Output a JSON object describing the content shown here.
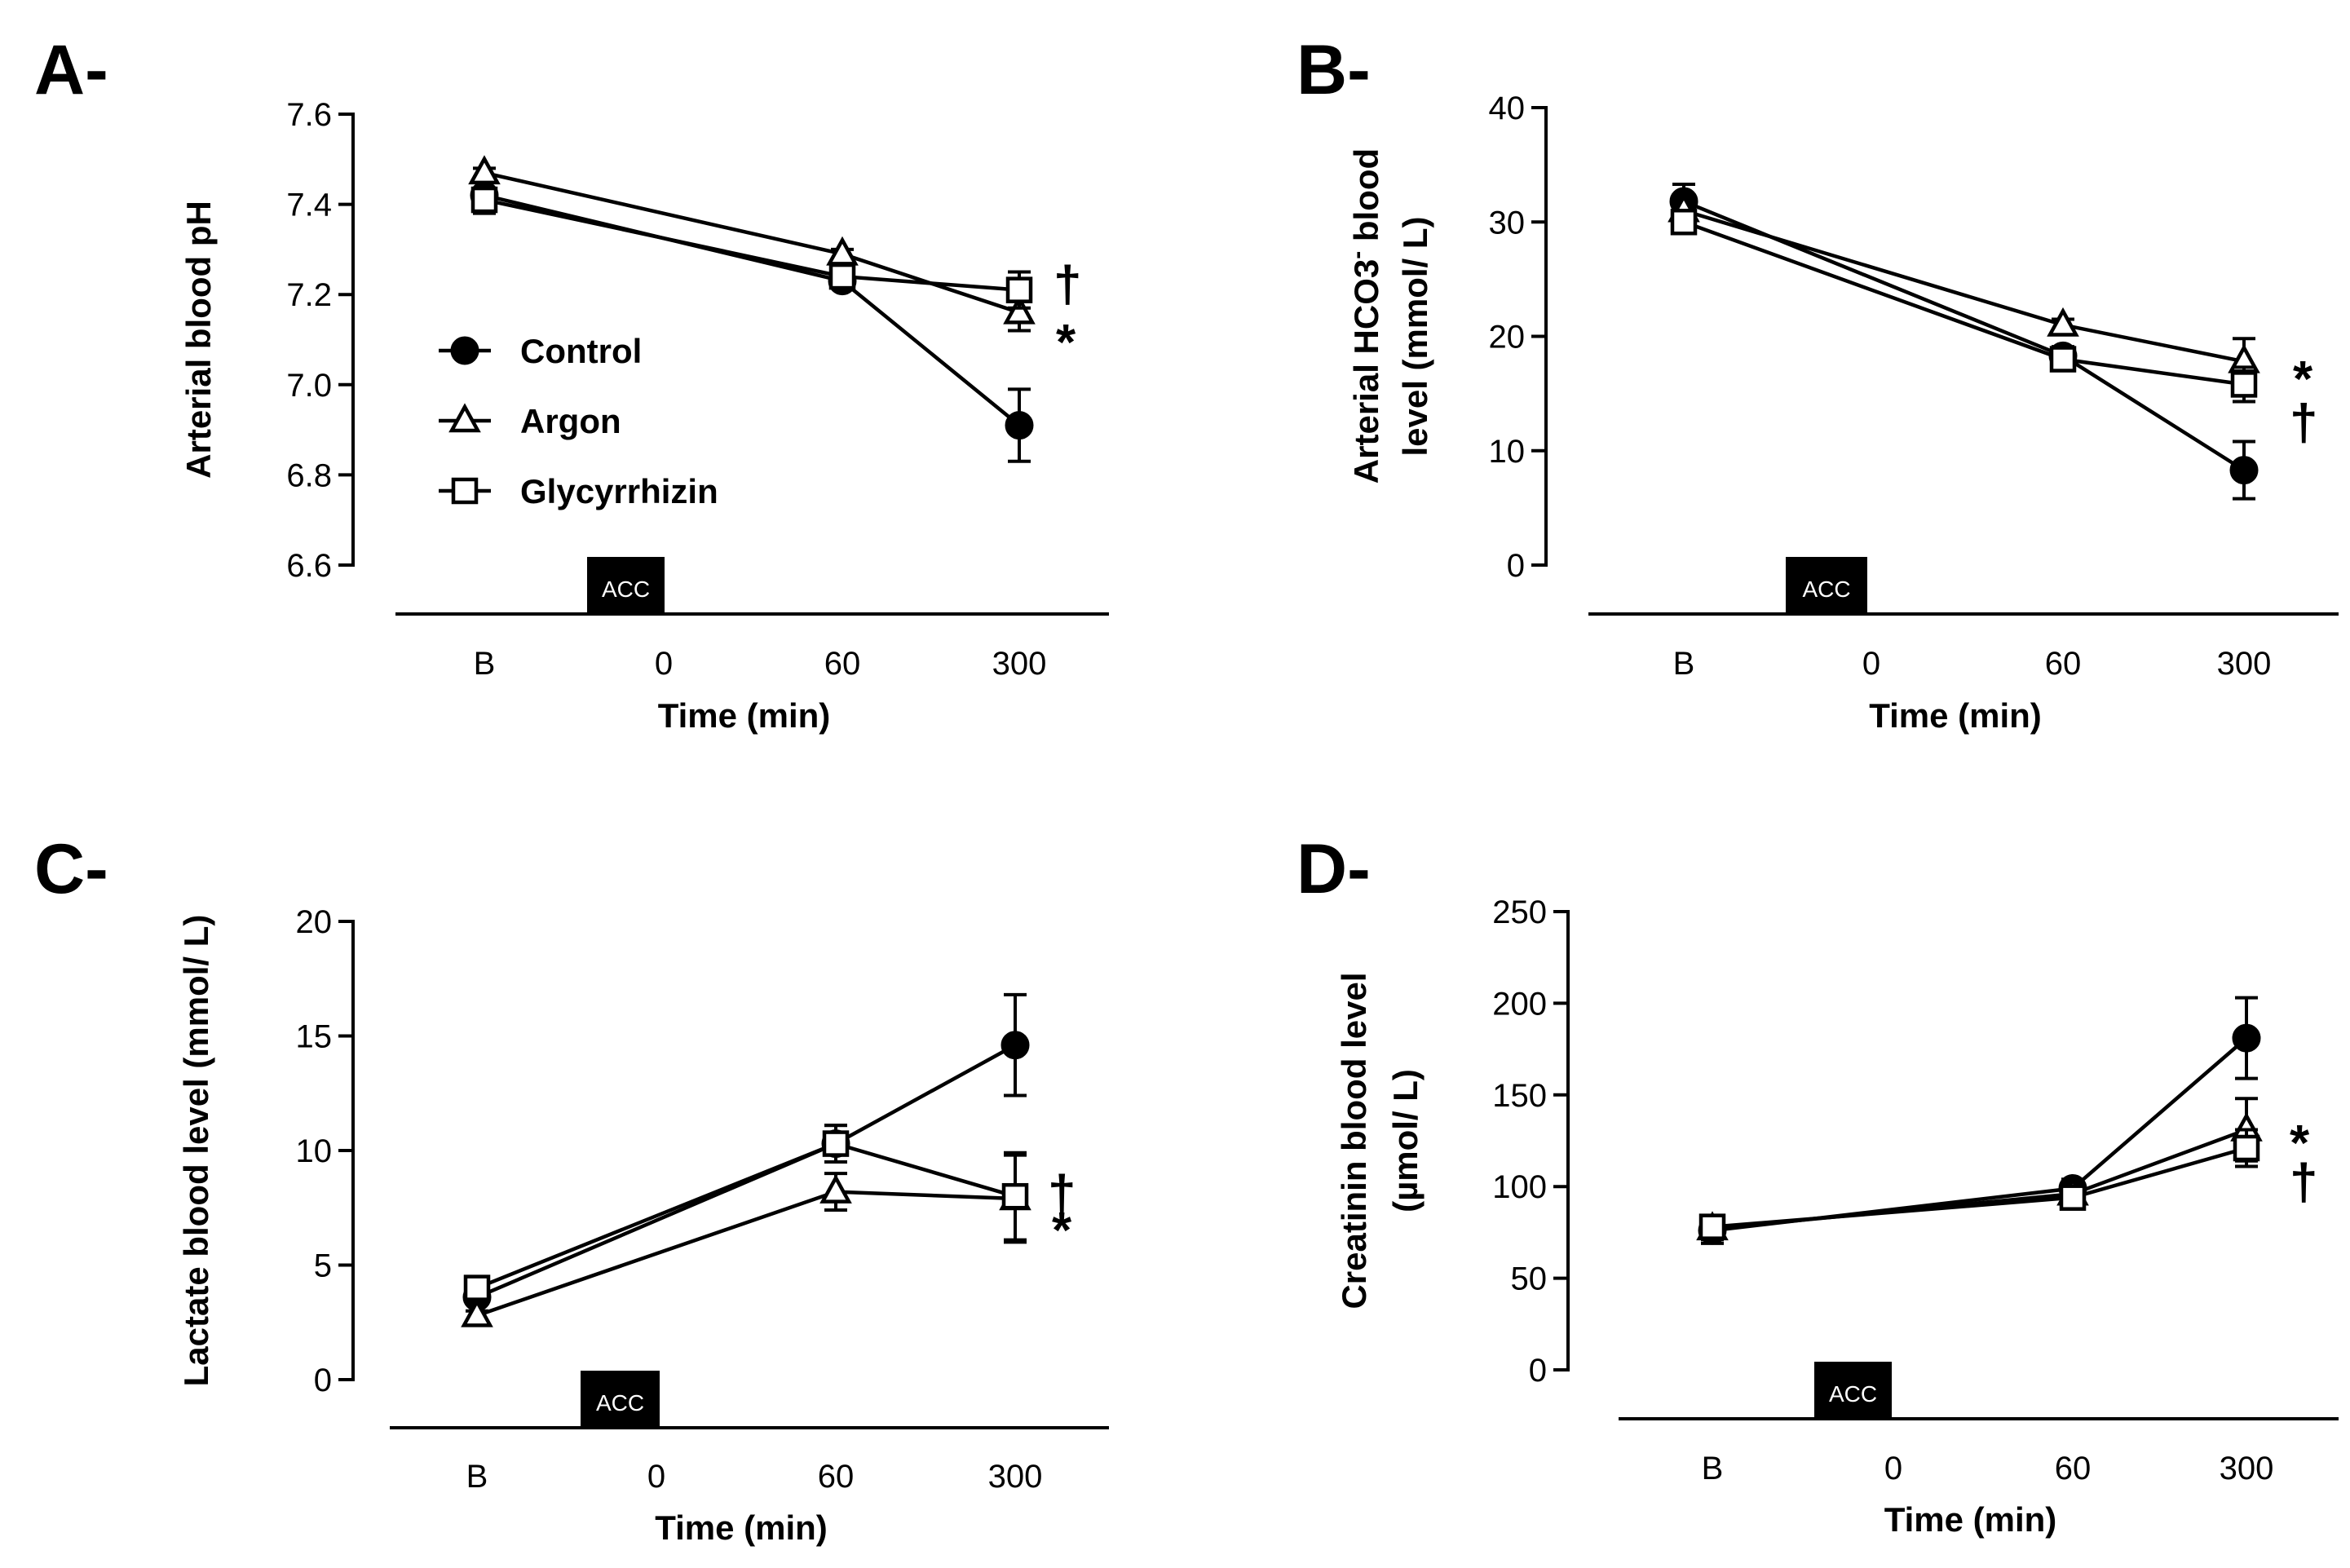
{
  "colors": {
    "ink": "#000000",
    "paper": "#ffffff"
  },
  "legend": [
    {
      "name": "Control",
      "marker": "circle"
    },
    {
      "name": "Argon",
      "marker": "triangle"
    },
    {
      "name": "Glycyrrhizin",
      "marker": "square"
    }
  ],
  "chart_data": [
    {
      "type": "line",
      "panel": "A-",
      "xlabel": "Time (min)",
      "x_ticks": [
        "B",
        "0",
        "60",
        "300"
      ],
      "ylabel": "Arterial blood pH",
      "ylim": [
        6.6,
        7.6
      ],
      "y_ticks": [
        "6.6",
        "6.8",
        "7.0",
        "7.2",
        "7.4",
        "7.6"
      ],
      "event_marker": "ACC",
      "legend_shown": true,
      "series": [
        {
          "name": "Control",
          "x": [
            "B",
            "60",
            "300"
          ],
          "values": [
            7.42,
            7.23,
            6.91
          ],
          "errors": [
            0.04,
            0.01,
            0.08
          ]
        },
        {
          "name": "Argon",
          "x": [
            "B",
            "60",
            "300"
          ],
          "values": [
            7.47,
            7.29,
            7.16
          ],
          "errors": [
            0.01,
            0.01,
            0.04
          ]
        },
        {
          "name": "Glycyrrhizin",
          "x": [
            "B",
            "60",
            "300"
          ],
          "values": [
            7.41,
            7.24,
            7.21
          ],
          "errors": [
            0.02,
            0.01,
            0.04
          ]
        }
      ],
      "annotations": [
        {
          "text": "†",
          "series": "Glycyrrhizin",
          "x": "300"
        },
        {
          "text": "*",
          "series": "Argon",
          "x": "300"
        }
      ]
    },
    {
      "type": "line",
      "panel": "B-",
      "xlabel": "Time (min)",
      "x_ticks": [
        "B",
        "0",
        "60",
        "300"
      ],
      "ylabel_lines": [
        "Arterial HCO3",
        "-",
        " blood",
        "level (mmol/ L)"
      ],
      "ylim": [
        0,
        40
      ],
      "y_ticks": [
        "0",
        "10",
        "20",
        "30",
        "40"
      ],
      "event_marker": "ACC",
      "legend_shown": false,
      "series": [
        {
          "name": "Control",
          "x": [
            "B",
            "60",
            "300"
          ],
          "values": [
            31.8,
            18.3,
            8.3
          ],
          "errors": [
            1.5,
            0.8,
            2.5
          ]
        },
        {
          "name": "Argon",
          "x": [
            "B",
            "60",
            "300"
          ],
          "values": [
            31.0,
            21.0,
            17.8
          ],
          "errors": [
            0.5,
            0.5,
            2.0
          ]
        },
        {
          "name": "Glycyrrhizin",
          "x": [
            "B",
            "60",
            "300"
          ],
          "values": [
            30.0,
            18.0,
            15.8
          ],
          "errors": [
            0.8,
            0.8,
            1.5
          ]
        }
      ],
      "annotations": [
        {
          "text": "*",
          "series": "Argon",
          "x": "300"
        },
        {
          "text": "†",
          "series": "Glycyrrhizin",
          "x": "300"
        }
      ]
    },
    {
      "type": "line",
      "panel": "C-",
      "xlabel": "Time (min)",
      "x_ticks": [
        "B",
        "0",
        "60",
        "300"
      ],
      "ylabel": "Lactate blood level (mmol/ L)",
      "ylim": [
        0,
        20
      ],
      "y_ticks": [
        "0",
        "5",
        "10",
        "15",
        "20"
      ],
      "event_marker": "ACC",
      "legend_shown": false,
      "series": [
        {
          "name": "Control",
          "x": [
            "B",
            "60",
            "300"
          ],
          "values": [
            3.6,
            10.3,
            14.6
          ],
          "errors": [
            0.3,
            0.8,
            2.2
          ]
        },
        {
          "name": "Argon",
          "x": [
            "B",
            "60",
            "300"
          ],
          "values": [
            2.8,
            8.2,
            7.9
          ],
          "errors": [
            0.2,
            0.8,
            1.9
          ]
        },
        {
          "name": "Glycyrrhizin",
          "x": [
            "B",
            "60",
            "300"
          ],
          "values": [
            4.0,
            10.3,
            8.0
          ],
          "errors": [
            0.3,
            0.8,
            1.9
          ]
        }
      ],
      "annotations": [
        {
          "text": "†",
          "series": "Glycyrrhizin",
          "x": "300"
        },
        {
          "text": "*",
          "series": "Argon",
          "x": "300"
        }
      ]
    },
    {
      "type": "line",
      "panel": "D-",
      "xlabel": "Time (min)",
      "x_ticks": [
        "B",
        "0",
        "60",
        "300"
      ],
      "ylabel_lines": [
        "Creatinin blood  level",
        "(µmol/ L)"
      ],
      "ylim": [
        0,
        250
      ],
      "y_ticks": [
        "0",
        "50",
        "100",
        "150",
        "200",
        "250"
      ],
      "event_marker": "ACC",
      "legend_shown": false,
      "series": [
        {
          "name": "Control",
          "x": [
            "B",
            "60",
            "300"
          ],
          "values": [
            76,
            99,
            181
          ],
          "errors": [
            7,
            5,
            22
          ]
        },
        {
          "name": "Argon",
          "x": [
            "B",
            "60",
            "300"
          ],
          "values": [
            77,
            96,
            131
          ],
          "errors": [
            6,
            5,
            17
          ]
        },
        {
          "name": "Glycyrrhizin",
          "x": [
            "B",
            "60",
            "300"
          ],
          "values": [
            78,
            94,
            121
          ],
          "errors": [
            6,
            5,
            10
          ]
        }
      ],
      "annotations": [
        {
          "text": "*",
          "series": "Argon",
          "x": "300"
        },
        {
          "text": "†",
          "series": "Glycyrrhizin",
          "x": "300"
        }
      ]
    }
  ]
}
